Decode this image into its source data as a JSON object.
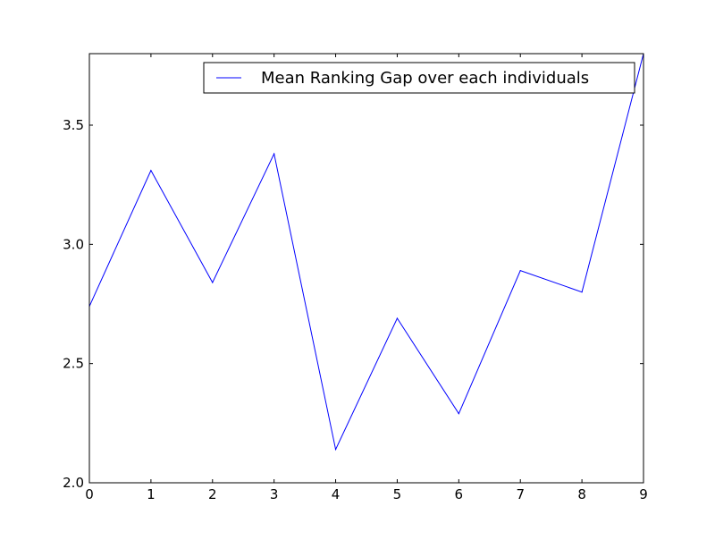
{
  "chart_data": {
    "type": "line",
    "title": "",
    "xlabel": "",
    "ylabel": "",
    "xlim": [
      0,
      9
    ],
    "ylim": [
      2.0,
      3.8
    ],
    "x": [
      0,
      1,
      2,
      3,
      4,
      5,
      6,
      7,
      8,
      9
    ],
    "x_ticks": [
      0,
      1,
      2,
      3,
      4,
      5,
      6,
      7,
      8,
      9
    ],
    "x_tick_labels": [
      "0",
      "1",
      "2",
      "3",
      "4",
      "5",
      "6",
      "7",
      "8",
      "9"
    ],
    "y_ticks": [
      2.0,
      2.5,
      3.0,
      3.5
    ],
    "y_tick_labels": [
      "2.0",
      "2.5",
      "3.0",
      "3.5"
    ],
    "grid": false,
    "legend_position": "top-right",
    "series": [
      {
        "name": "Mean Ranking Gap over each individuals",
        "color": "#0000ff",
        "values": [
          2.74,
          3.31,
          2.84,
          3.38,
          2.14,
          2.69,
          2.29,
          2.89,
          2.8,
          3.8
        ]
      }
    ]
  }
}
